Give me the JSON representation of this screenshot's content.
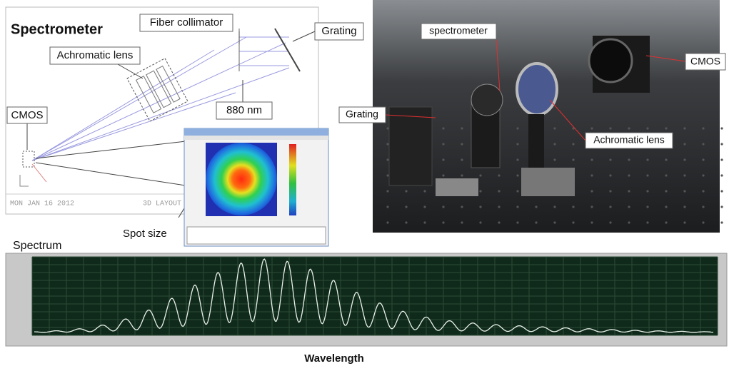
{
  "diagram": {
    "title": "Spectrometer",
    "labels": {
      "fiber_collimator": "Fiber collimator",
      "grating": "Grating",
      "achromatic_lens": "Achromatic lens",
      "cmos": "CMOS",
      "wavelength_nm": "880 nm",
      "spot_size": "Spot size"
    },
    "footer": {
      "date": "MON JAN 16 2012",
      "layout": "3D LAYOUT"
    }
  },
  "photo": {
    "labels": {
      "spectrometer": "spectrometer",
      "cmos": "CMOS",
      "grating": "Grating",
      "achromatic_lens": "Achromatic lens"
    }
  },
  "spectrum": {
    "title": "Spectrum",
    "x_label": "Wavelength"
  }
}
